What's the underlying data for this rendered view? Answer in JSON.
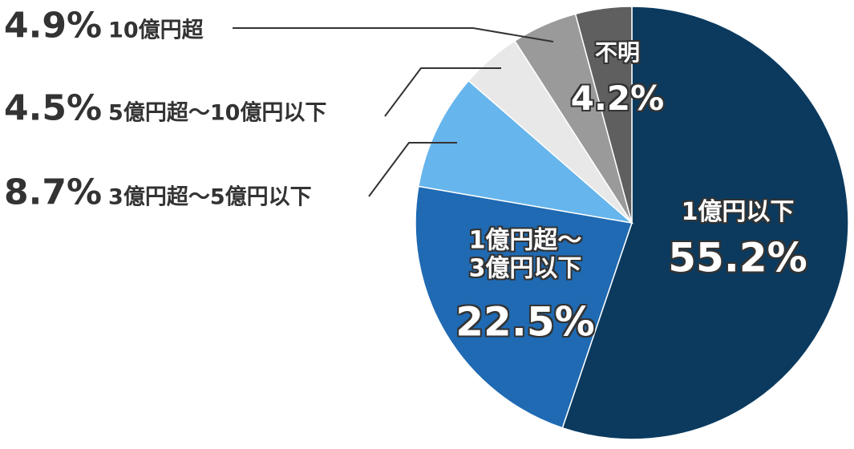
{
  "chart_data": {
    "type": "pie",
    "categories": [
      "1億円以下",
      "1億円超～\n3億円以下",
      "3億円超～5億円以下",
      "5億円超～10億円以下",
      "10億円超",
      "不明"
    ],
    "values": [
      55.2,
      22.5,
      8.7,
      4.5,
      4.9,
      4.2
    ],
    "value_labels": [
      "55.2%",
      "22.5%",
      "8.7%",
      "4.5%",
      "4.9%",
      "4.2%"
    ],
    "colors": [
      "#0b3a5e",
      "#1f6ab3",
      "#66b5ec",
      "#e8e8e8",
      "#9a9a9a",
      "#5f5f5f"
    ]
  }
}
